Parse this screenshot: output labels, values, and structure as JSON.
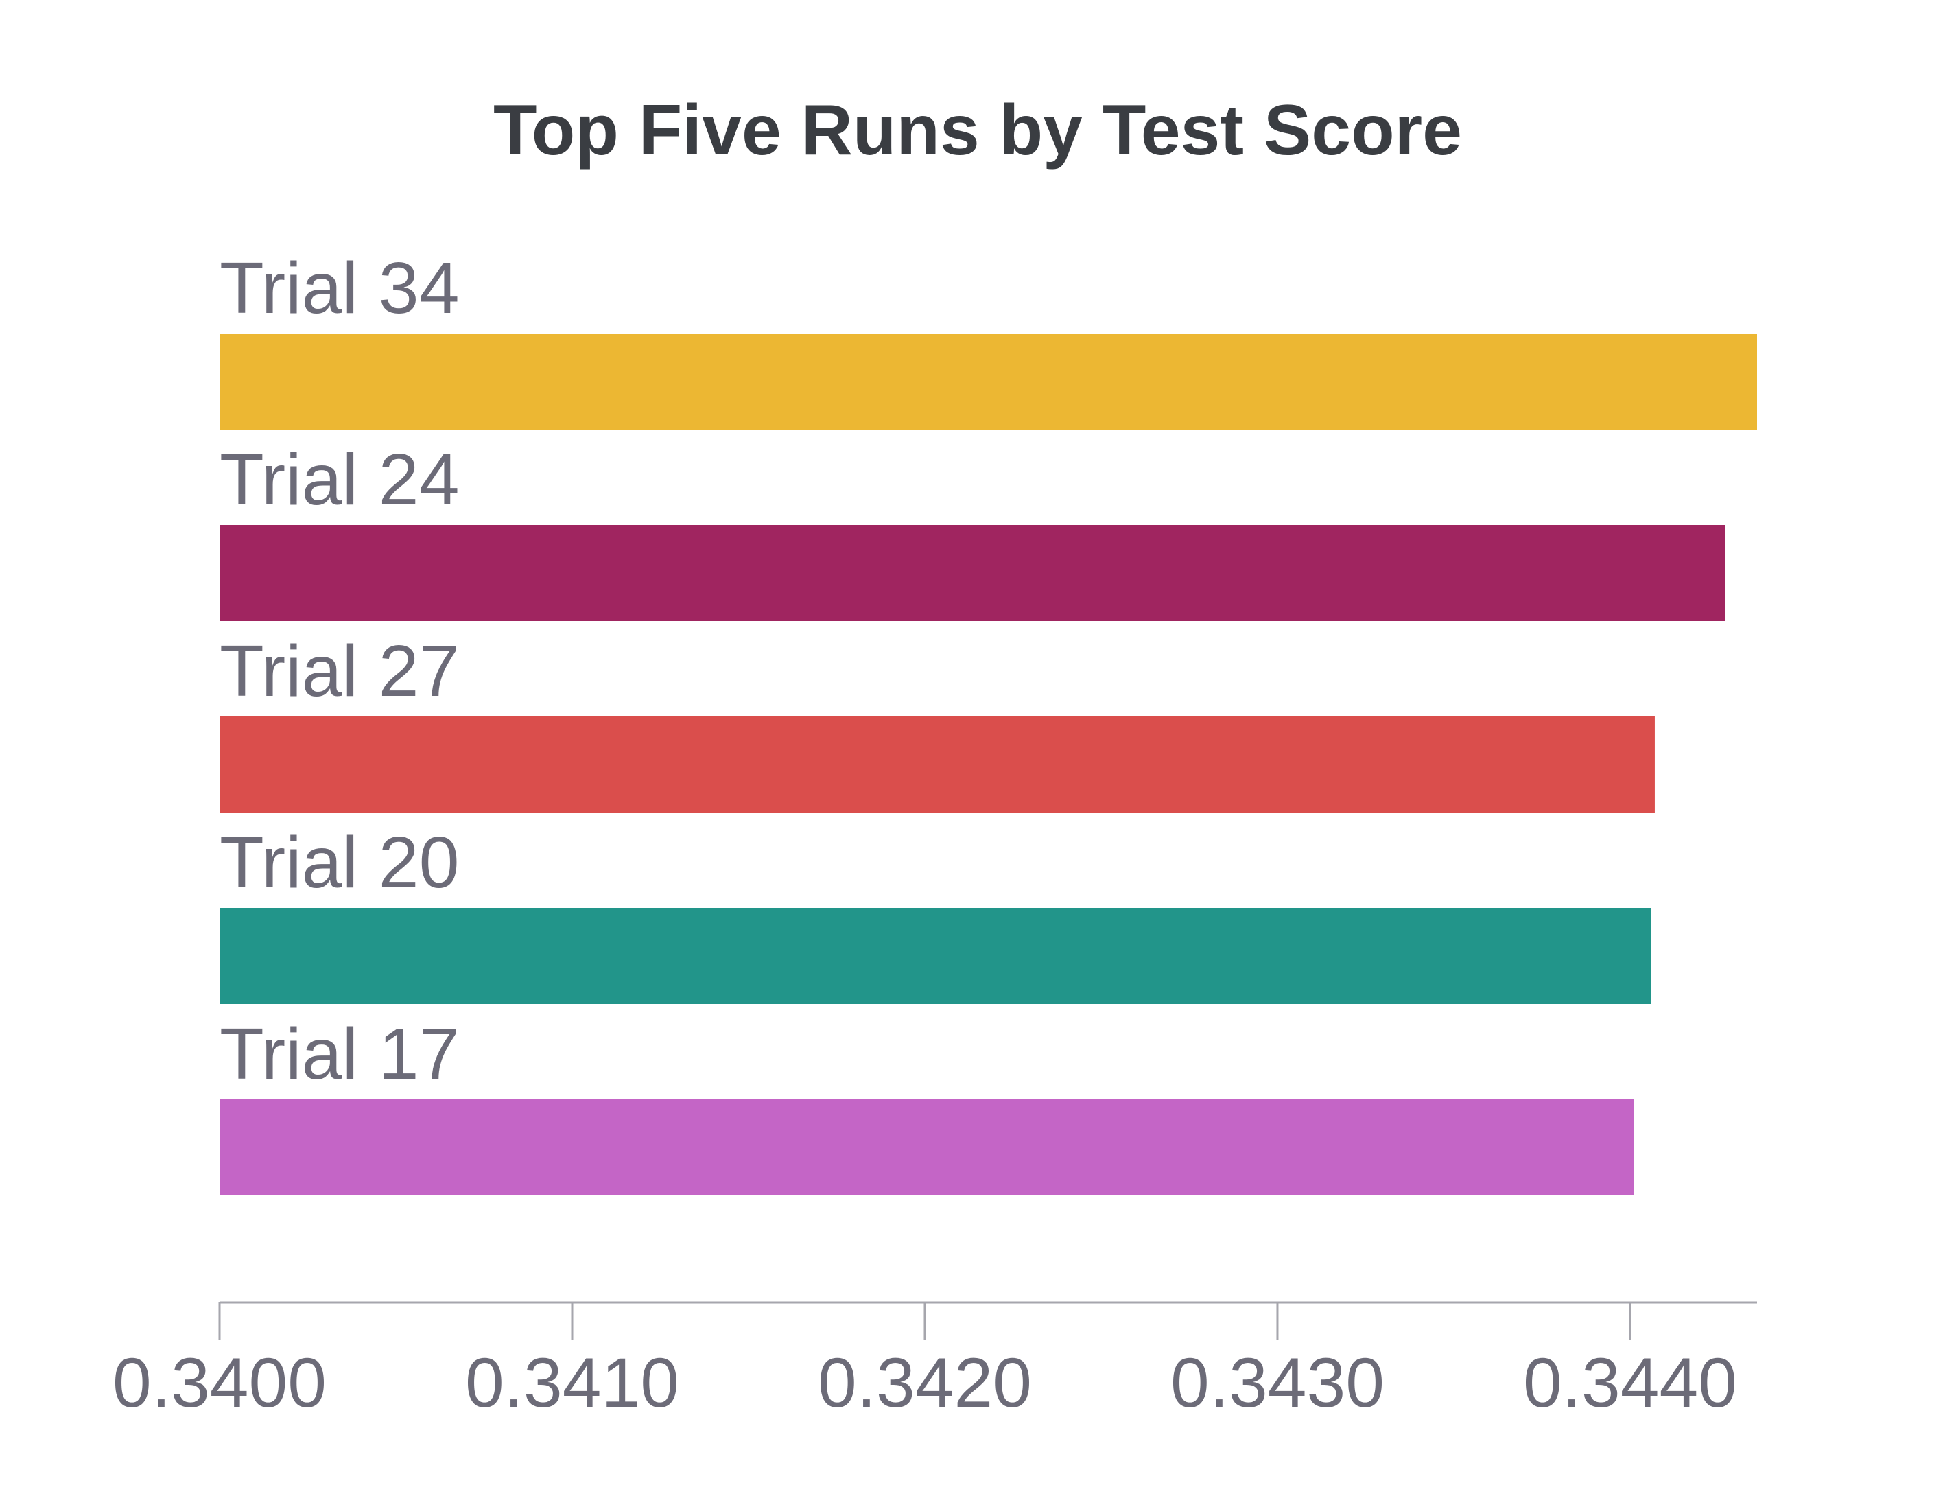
{
  "chart_data": {
    "type": "bar",
    "orientation": "horizontal",
    "title": "Top Five Runs by Test Score",
    "xlabel": "",
    "ylabel": "",
    "categories": [
      "Trial 34",
      "Trial 24",
      "Trial 27",
      "Trial 20",
      "Trial 17"
    ],
    "values": [
      0.34436,
      0.34427,
      0.34407,
      0.34406,
      0.34401
    ],
    "colors": [
      "#ECB733",
      "#A02560",
      "#DA4E4C",
      "#22958A",
      "#C465C6"
    ],
    "xlim": [
      0.34,
      0.34436
    ],
    "xticks": [
      0.34,
      0.341,
      0.342,
      0.343,
      0.344
    ],
    "xtick_labels": [
      "0.3400",
      "0.3410",
      "0.3420",
      "0.3430",
      "0.3440"
    ],
    "grid": false,
    "legend": "none"
  }
}
